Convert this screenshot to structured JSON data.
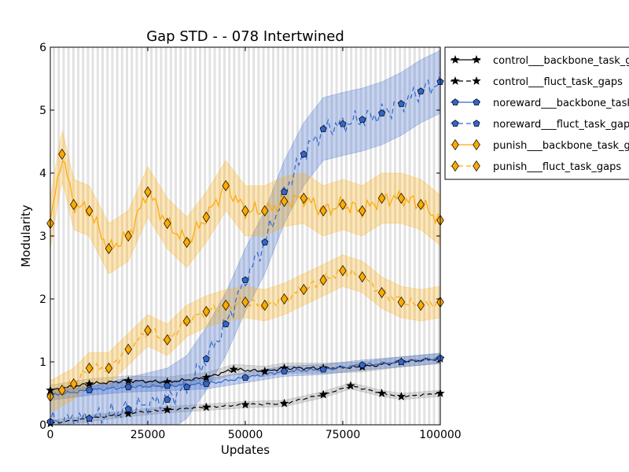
{
  "chart_data": {
    "type": "line",
    "title": "Gap STD -  - 078 Intertwined",
    "xlabel": "Updates",
    "ylabel": "Modularity",
    "xlim": [
      0,
      100000
    ],
    "ylim": [
      0,
      6
    ],
    "x_ticks": [
      "0",
      "25000",
      "50000",
      "75000",
      "100000"
    ],
    "y_ticks": [
      "0",
      "1",
      "2",
      "3",
      "4",
      "5",
      "6"
    ],
    "grid": "vertical light gray bands",
    "legend_position": "outside top-right",
    "series": [
      {
        "name": "control___backbone_task_gaps",
        "color": "#000000",
        "marker": "star",
        "linestyle": "solid",
        "x": [
          0,
          10000,
          20000,
          30000,
          40000,
          47000,
          55000,
          60000,
          70000,
          80000,
          90000,
          100000
        ],
        "y": [
          0.55,
          0.65,
          0.7,
          0.68,
          0.75,
          0.88,
          0.85,
          0.9,
          0.9,
          0.92,
          1.0,
          1.05
        ],
        "band": 0.08
      },
      {
        "name": "control___fluct_task_gaps",
        "color": "#000000",
        "marker": "star",
        "linestyle": "dashed",
        "x": [
          0,
          10000,
          20000,
          30000,
          40000,
          50000,
          60000,
          70000,
          77000,
          85000,
          90000,
          100000
        ],
        "y": [
          0.02,
          0.1,
          0.18,
          0.24,
          0.28,
          0.32,
          0.34,
          0.48,
          0.62,
          0.5,
          0.45,
          0.5
        ],
        "band": 0.05
      },
      {
        "name": "noreward___backbone_task_gaps",
        "color": "#3366cc",
        "marker": "pentagon",
        "linestyle": "solid",
        "x": [
          0,
          10000,
          20000,
          30000,
          40000,
          50000,
          60000,
          70000,
          80000,
          90000,
          100000
        ],
        "y": [
          0.47,
          0.55,
          0.6,
          0.62,
          0.65,
          0.75,
          0.85,
          0.88,
          0.95,
          1.0,
          1.06
        ],
        "band": 0.08
      },
      {
        "name": "noreward___fluct_task_gaps",
        "color": "#3366cc",
        "marker": "pentagon",
        "linestyle": "dashed",
        "x": [
          0,
          10000,
          20000,
          30000,
          35000,
          40000,
          45000,
          50000,
          55000,
          60000,
          65000,
          70000,
          75000,
          80000,
          85000,
          90000,
          95000,
          100000
        ],
        "y": [
          0.05,
          0.1,
          0.25,
          0.4,
          0.6,
          1.05,
          1.6,
          2.3,
          2.9,
          3.7,
          4.3,
          4.7,
          4.78,
          4.85,
          4.95,
          5.1,
          5.3,
          5.45
        ],
        "band": 0.5
      },
      {
        "name": "punish___backbone_task_gaps",
        "color": "#ffaa00",
        "marker": "diamond",
        "linestyle": "solid",
        "x": [
          0,
          3000,
          6000,
          10000,
          15000,
          20000,
          25000,
          30000,
          35000,
          40000,
          45000,
          50000,
          55000,
          60000,
          65000,
          70000,
          75000,
          80000,
          85000,
          90000,
          95000,
          100000
        ],
        "y": [
          3.2,
          4.3,
          3.5,
          3.4,
          2.8,
          3.0,
          3.7,
          3.2,
          2.9,
          3.3,
          3.8,
          3.4,
          3.4,
          3.55,
          3.6,
          3.4,
          3.5,
          3.4,
          3.6,
          3.6,
          3.5,
          3.25
        ],
        "band": 0.4
      },
      {
        "name": "punish___fluct_task_gaps",
        "color": "#ffaa00",
        "marker": "diamond",
        "linestyle": "dashed",
        "x": [
          0,
          3000,
          6000,
          10000,
          15000,
          20000,
          25000,
          30000,
          35000,
          40000,
          45000,
          50000,
          55000,
          60000,
          65000,
          70000,
          75000,
          80000,
          85000,
          90000,
          95000,
          100000
        ],
        "y": [
          0.45,
          0.55,
          0.65,
          0.9,
          0.9,
          1.2,
          1.5,
          1.35,
          1.65,
          1.8,
          1.9,
          1.95,
          1.9,
          2.0,
          2.15,
          2.3,
          2.45,
          2.35,
          2.1,
          1.95,
          1.9,
          1.95
        ],
        "band": 0.25
      }
    ]
  }
}
